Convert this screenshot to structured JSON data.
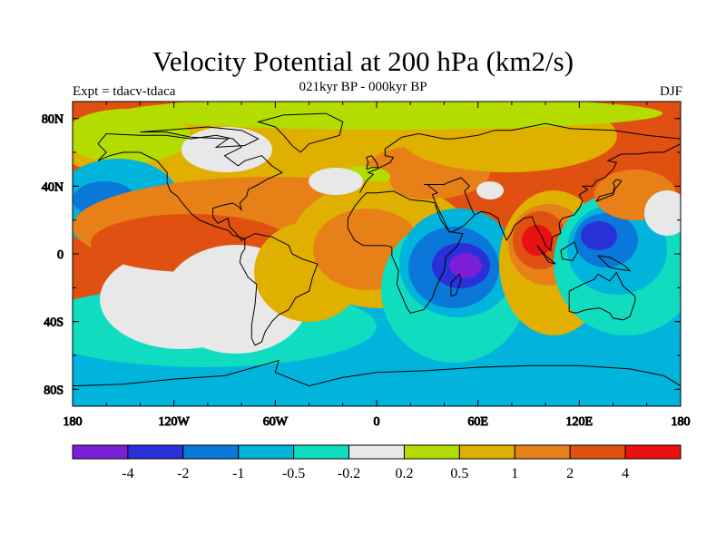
{
  "header": {
    "title": "Velocity Potential at 200 hPa (km2/s)",
    "subtitle": "021kyr BP - 000kyr BP",
    "left_label": "Expt = tdacv-tdaca",
    "right_label": "DJF"
  },
  "axes": {
    "x_ticks": [
      "180",
      "120W",
      "60W",
      "0",
      "60E",
      "120E",
      "180"
    ],
    "y_ticks": [
      "80N",
      "40N",
      "0",
      "40S",
      "80S"
    ]
  },
  "colorbar": {
    "colors": [
      "#7a1ed8",
      "#2830d8",
      "#0a78d8",
      "#00b4dc",
      "#10dcc0",
      "#e8e8e8",
      "#b4dc00",
      "#e0b000",
      "#e88018",
      "#e05010",
      "#e81010"
    ],
    "labels": [
      "-4",
      "-2",
      "-1",
      "-0.5",
      "-0.2",
      "0.2",
      "0.5",
      "1",
      "2",
      "4"
    ]
  },
  "chart_data": {
    "type": "heatmap",
    "title": "Velocity Potential at 200 hPa (km2/s)",
    "subtitle": "021kyr BP - 000kyr BP",
    "season": "DJF",
    "experiment": "Expt = tdacv-tdaca",
    "projection": "cylindrical equidistant",
    "lon_range": [
      -180,
      180
    ],
    "lat_range": [
      -90,
      90
    ],
    "contour_levels": [
      -4,
      -2,
      -1,
      -0.5,
      -0.2,
      0.2,
      0.5,
      1,
      2,
      4
    ],
    "features": [
      {
        "region": "Southern Indian Ocean / Madagascar",
        "lon": 50,
        "lat": -10,
        "value": "< -4"
      },
      {
        "region": "Maritime Continent / West Pacific",
        "lon": 145,
        "lat": 5,
        "value": "-4 to -2"
      },
      {
        "region": "Eastern Pacific",
        "lon": -120,
        "lat": 5,
        "value": "2 to 4"
      },
      {
        "region": "Sumatra / Bay of Bengal",
        "lon": 100,
        "lat": 5,
        "value": "> 4"
      },
      {
        "region": "Southern Ocean",
        "lon": 0,
        "lat": -75,
        "value": "-1 to -0.5"
      },
      {
        "region": "Arctic",
        "lon": 0,
        "lat": 85,
        "value": "0.2 to 0.5"
      }
    ]
  }
}
